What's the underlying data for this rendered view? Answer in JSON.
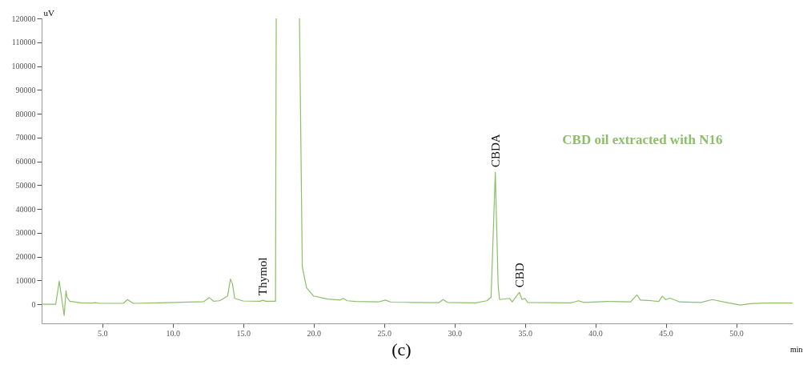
{
  "chart_data": {
    "type": "line",
    "xlabel": "min",
    "ylabel": "uV",
    "x": [
      0.7,
      1.7,
      1.95,
      2.3,
      2.43,
      2.5,
      2.7,
      3.5,
      4.3,
      4.5,
      4.8,
      6.5,
      6.8,
      7.2,
      9,
      12.2,
      12.6,
      12.9,
      13.3,
      13.5,
      13.9,
      14.1,
      14.25,
      14.4,
      15,
      16.2,
      16.4,
      16.6,
      17.3,
      17.35,
      17.4,
      18.95,
      19.0,
      19.2,
      19.5,
      20,
      21,
      21.9,
      22.1,
      22.4,
      23,
      24.6,
      25.1,
      25.5,
      27,
      28.9,
      29.2,
      29.5,
      31.5,
      32.3,
      32.6,
      32.9,
      33.1,
      33.2,
      33.9,
      34.1,
      34.6,
      34.8,
      35.0,
      35.2,
      38.2,
      38.5,
      38.8,
      39.2,
      40.8,
      42.5,
      42.95,
      43.2,
      44.0,
      44.5,
      44.75,
      45.0,
      45.3,
      46,
      47.5,
      48.3,
      49.5,
      50.3,
      51,
      52,
      54
    ],
    "series": [
      {
        "name": "CBD oil extracted with N16",
        "color": "#8cbf6a",
        "values": [
          0,
          0,
          9700,
          -4700,
          5700,
          3000,
          1300,
          600,
          500,
          700,
          400,
          400,
          2000,
          400,
          600,
          1100,
          2800,
          1300,
          1500,
          2000,
          3500,
          10600,
          8500,
          2500,
          1400,
          1300,
          1700,
          1300,
          1300,
          120000,
          null,
          null,
          120000,
          15800,
          7000,
          3500,
          2200,
          1800,
          2500,
          1500,
          1200,
          1000,
          1800,
          900,
          800,
          700,
          2000,
          800,
          600,
          1500,
          3000,
          55500,
          8000,
          2000,
          2500,
          1000,
          5000,
          2000,
          2500,
          800,
          600,
          1000,
          1500,
          800,
          1200,
          1000,
          4000,
          1800,
          1500,
          1200,
          3400,
          2000,
          2600,
          1000,
          800,
          2000,
          500,
          -300,
          300,
          500,
          500
        ]
      }
    ],
    "xlim": [
      0.7,
      54.0
    ],
    "xticks": [
      {
        "value": 5,
        "label": "5.0"
      },
      {
        "value": 10,
        "label": "10.0"
      },
      {
        "value": 15,
        "label": "15.0"
      },
      {
        "value": 20,
        "label": "20.0"
      },
      {
        "value": 25,
        "label": "25.0"
      },
      {
        "value": 30,
        "label": "30.0"
      },
      {
        "value": 35,
        "label": "35.0"
      },
      {
        "value": 40,
        "label": "40.0"
      },
      {
        "value": 45,
        "label": "45.0"
      },
      {
        "value": 50,
        "label": "50.0"
      }
    ],
    "ylim": [
      -8000,
      120000
    ],
    "yticks": [
      0,
      10000,
      20000,
      30000,
      40000,
      50000,
      60000,
      70000,
      80000,
      90000,
      100000,
      110000,
      120000
    ],
    "grid": false,
    "annotations": [
      {
        "text": "Thymol",
        "x": 16.4,
        "y": 1700
      },
      {
        "text": "CBDA",
        "x": 32.9,
        "y": 55500
      },
      {
        "text": "CBD",
        "x": 34.6,
        "y": 5000
      },
      "(c)"
    ]
  }
}
